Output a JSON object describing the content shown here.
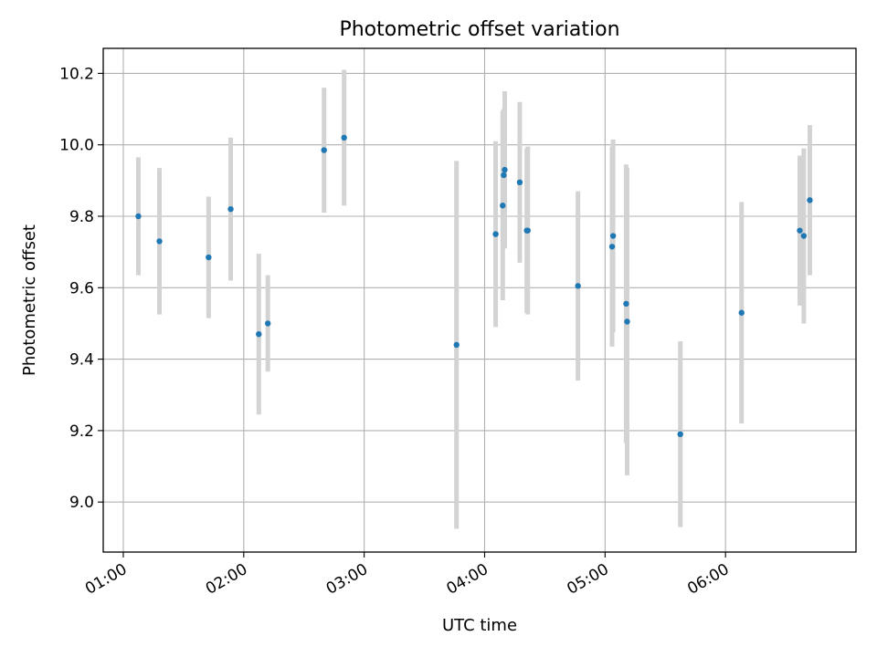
{
  "chart_data": {
    "type": "scatter",
    "title": "Photometric offset variation",
    "xlabel": "UTC time",
    "ylabel": "Photometric offset",
    "x_unit": "UTC",
    "xlim": [
      "00:50",
      "07:05"
    ],
    "ylim": [
      8.86,
      10.27
    ],
    "x_ticks": [
      "01:00",
      "02:00",
      "03:00",
      "04:00",
      "05:00",
      "06:00"
    ],
    "y_ticks": [
      "9.0",
      "9.2",
      "9.4",
      "9.6",
      "9.8",
      "10.0",
      "10.2"
    ],
    "grid": true,
    "colors": {
      "marker": "#1f77b4",
      "errorbar": "#d3d3d3"
    },
    "series": [
      {
        "x": [
          "01:07:30",
          "01:18:00",
          "01:42:30",
          "01:53:30",
          "02:07:30",
          "02:12:00",
          "02:40:00",
          "02:50:00",
          "03:46:00",
          "04:05:30",
          "04:09:00",
          "04:09:30",
          "04:10:00",
          "04:17:30",
          "04:21:00",
          "04:21:30",
          "04:46:30",
          "05:03:30",
          "05:04:00",
          "05:10:30",
          "05:11:00",
          "05:37:30",
          "06:08:00",
          "06:37:00",
          "06:39:00",
          "06:42:00"
        ],
        "y": [
          9.8,
          9.73,
          9.685,
          9.82,
          9.47,
          9.5,
          9.985,
          10.02,
          9.44,
          9.75,
          9.83,
          9.915,
          9.93,
          9.895,
          9.76,
          9.76,
          9.605,
          9.715,
          9.745,
          9.555,
          9.505,
          9.19,
          9.53,
          9.76,
          9.745,
          9.845
        ],
        "yerr": [
          0.165,
          0.205,
          0.17,
          0.2,
          0.225,
          0.135,
          0.175,
          0.19,
          0.515,
          0.26,
          0.265,
          0.185,
          0.22,
          0.225,
          0.23,
          0.235,
          0.265,
          0.28,
          0.27,
          0.39,
          0.43,
          0.26,
          0.31,
          0.21,
          0.245,
          0.21
        ]
      }
    ]
  }
}
